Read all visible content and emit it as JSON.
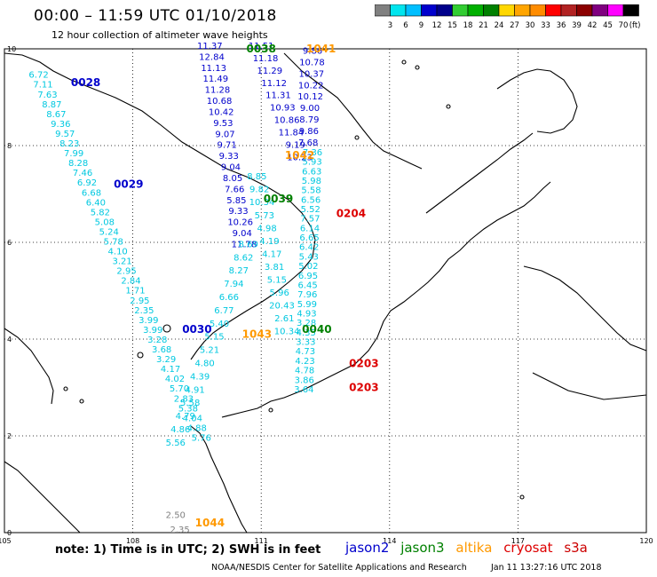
{
  "title": "00:00 – 11:59 UTC 01/10/2018",
  "subtitle": "12 hour collection of altimeter wave heights",
  "colorbar": {
    "unit": "(ft)",
    "ticks": [
      "3",
      "6",
      "9",
      "12",
      "15",
      "18",
      "21",
      "24",
      "27",
      "30",
      "33",
      "36",
      "39",
      "42",
      "45",
      "70"
    ],
    "colors": [
      "#808080",
      "#00e5ee",
      "#00bfff",
      "#0000cd",
      "#00008b",
      "#32cd32",
      "#00b000",
      "#008000",
      "#ffd700",
      "#ffa500",
      "#ff8c00",
      "#ff0000",
      "#b22222",
      "#8b0000",
      "#800080",
      "#ff00ff",
      "#000000"
    ]
  },
  "axes": {
    "lon_labels": [
      "105",
      "108",
      "111",
      "114",
      "117",
      "120"
    ],
    "lat_labels": [
      "0",
      "2",
      "4",
      "6",
      "8",
      "10"
    ]
  },
  "colors": {
    "jason2": "#0000cc",
    "jason3": "#008000",
    "altika": "#ff9900",
    "cryosat": "#dd0000",
    "s3a": "#cc0000",
    "cyan": "#00c8e0",
    "gray": "#808080"
  },
  "pass_labels": [
    {
      "text": "0038",
      "lon": 111.0,
      "lat": 10.0,
      "sat": "jason3"
    },
    {
      "text": "1041",
      "lon": 112.4,
      "lat": 10.0,
      "sat": "altika"
    },
    {
      "text": "0028",
      "lon": 106.9,
      "lat": 9.3,
      "sat": "jason2"
    },
    {
      "text": "0029",
      "lon": 107.9,
      "lat": 7.2,
      "sat": "jason2"
    },
    {
      "text": "1042",
      "lon": 111.9,
      "lat": 7.8,
      "sat": "altika"
    },
    {
      "text": "0039",
      "lon": 111.4,
      "lat": 6.9,
      "sat": "jason3"
    },
    {
      "text": "0204",
      "lon": 113.1,
      "lat": 6.6,
      "sat": "cryosat"
    },
    {
      "text": "0030",
      "lon": 109.5,
      "lat": 4.2,
      "sat": "jason2"
    },
    {
      "text": "1043",
      "lon": 110.9,
      "lat": 4.1,
      "sat": "altika"
    },
    {
      "text": "0040",
      "lon": 112.3,
      "lat": 4.2,
      "sat": "jason3"
    },
    {
      "text": "0203",
      "lon": 113.4,
      "lat": 3.5,
      "sat": "cryosat"
    },
    {
      "text": "0203",
      "lon": 113.4,
      "lat": 3.0,
      "sat": "cryosat"
    },
    {
      "text": "1044",
      "lon": 109.8,
      "lat": 0.2,
      "sat": "altika"
    }
  ],
  "tracks": [
    {
      "name": "track-0028-0029",
      "color": "cyan",
      "lon_start": 105.8,
      "lon_end": 109.6,
      "lat_start": 9.4,
      "lat_end": 1.9,
      "values": [
        "6.72",
        "7.11",
        "7.63",
        "8.87",
        "8.67",
        "9.36",
        "9.57",
        "8.23",
        "7.99",
        "8.28",
        "7.46",
        "6.92",
        "6.68",
        "6.40",
        "5.82",
        "5.08",
        "5.24",
        "5.78",
        "4.10",
        "3.21",
        "2.95",
        "2.84",
        "1.71",
        "2.95",
        "2.35",
        "3.99",
        "3.99",
        "3.28",
        "3.68",
        "3.29",
        "4.17",
        "4.02",
        "5.70",
        "2.83",
        "5.38",
        "4.04",
        "4.88",
        "5.76"
      ]
    },
    {
      "name": "track-0038-0039",
      "color": "jason2",
      "lon_start": 109.8,
      "lon_end": 110.6,
      "lat_start": 10.0,
      "lat_end": 5.9,
      "values": [
        "11.37",
        "12.84",
        "11.13",
        "11.49",
        "11.28",
        "10.68",
        "10.42",
        "9.53",
        "9.07",
        "9.71",
        "9.33",
        "9.04",
        "8.05",
        "7.66",
        "5.85",
        "9.33",
        "10.26",
        "9.04",
        "11.78"
      ]
    },
    {
      "name": "track-0030-south",
      "color": "cyan",
      "lon_start": 110.7,
      "lon_end": 109.0,
      "lat_start": 5.9,
      "lat_end": 1.8,
      "values": [
        "8.69",
        "8.62",
        "8.27",
        "7.94",
        "6.66",
        "6.77",
        "5.40",
        "5.15",
        "5.21",
        "4.80",
        "4.39",
        "4.91",
        "5.58",
        "4.79",
        "4.86",
        "5.56"
      ]
    },
    {
      "name": "track-1041-1042",
      "color": "jason2",
      "lon_start": 111.0,
      "lon_end": 111.9,
      "lat_start": 10.0,
      "lat_end": 7.7,
      "values": [
        "11.51",
        "11.18",
        "11.29",
        "11.12",
        "11.31",
        "10.93",
        "10.86",
        "11.84",
        "9.19",
        "10.23"
      ]
    },
    {
      "name": "track-1041-east",
      "color": "jason2",
      "lon_start": 112.2,
      "lon_end": 112.1,
      "lat_start": 9.9,
      "lat_end": 8.0,
      "values": [
        "9.86",
        "10.78",
        "10.37",
        "10.22",
        "10.12",
        "9.00",
        "8.79",
        "9.86",
        "7.68"
      ]
    },
    {
      "name": "track-1043",
      "color": "cyan",
      "lon_start": 110.9,
      "lon_end": 111.6,
      "lat_start": 7.3,
      "lat_end": 4.1,
      "values": [
        "8.85",
        "9.82",
        "10.34",
        "5.73",
        "4.98",
        "4.19",
        "4.17",
        "3.81",
        "5.15",
        "5.96",
        "20.43",
        "2.61",
        "10.34"
      ]
    },
    {
      "name": "track-0204-0203",
      "color": "cyan",
      "lon_start": 112.2,
      "lon_end": 112.0,
      "lat_start": 7.8,
      "lat_end": 2.9,
      "values": [
        "7.36",
        "5.93",
        "6.63",
        "5.98",
        "5.58",
        "6.56",
        "5.52",
        "7.57",
        "6.14",
        "6.65",
        "6.42",
        "5.43",
        "5.02",
        "6.95",
        "6.45",
        "7.96",
        "5.99",
        "4.93",
        "3.28",
        "4.35",
        "3.33",
        "4.73",
        "4.23",
        "4.78",
        "3.86",
        "3.64"
      ]
    },
    {
      "name": "track-1044",
      "color": "gray",
      "lon_start": 109.0,
      "lon_end": 109.1,
      "lat_start": 0.3,
      "lat_end": 0.0,
      "values": [
        "2.50",
        "2.35"
      ]
    }
  ],
  "note": "note: 1) Time is in UTC; 2) SWH is in feet",
  "satellites": [
    {
      "name": "jason2",
      "color": "#0000cc"
    },
    {
      "name": "jason3",
      "color": "#008000"
    },
    {
      "name": "altika",
      "color": "#ff9900"
    },
    {
      "name": "cryosat",
      "color": "#dd0000"
    },
    {
      "name": "s3a",
      "color": "#cc0000"
    }
  ],
  "credit": "NOAA/NESDIS Center for Satellite Applications and Research",
  "timestamp": "Jan 11 13:27:16 UTC 2018"
}
